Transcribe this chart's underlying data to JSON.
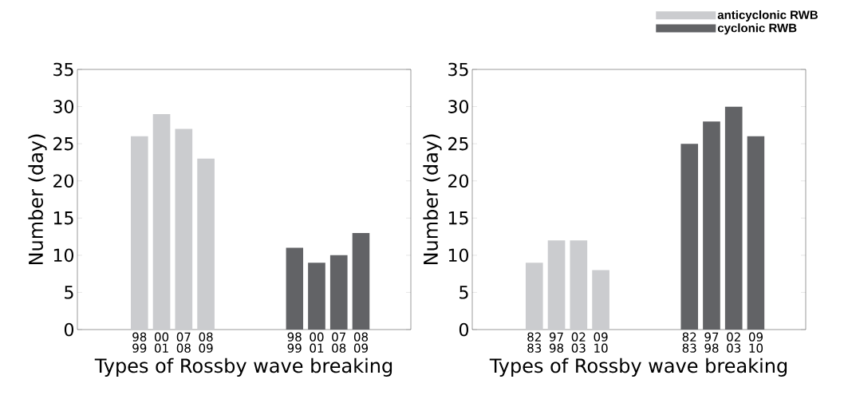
{
  "chart_data": [
    {
      "type": "bar",
      "xlabel": "Types of Rossby wave breaking",
      "ylabel": "Number (day)",
      "categories": [
        "98 99",
        "00 01",
        "07 08",
        "08 09",
        null,
        null,
        null,
        "98 99",
        "00 01",
        "07 08",
        "08 09"
      ],
      "series": [
        {
          "color": "#cbcccf",
          "values": [
            26,
            29,
            27,
            23,
            null,
            null,
            null,
            null,
            null,
            null,
            null
          ]
        },
        {
          "color": "#626366",
          "values": [
            null,
            null,
            null,
            null,
            null,
            null,
            null,
            11,
            9,
            10,
            13
          ]
        }
      ],
      "ylim": [
        0,
        35
      ],
      "yticks": [
        0,
        5,
        10,
        15,
        20,
        25,
        30,
        35
      ],
      "grid": false,
      "legend": false
    },
    {
      "type": "bar",
      "xlabel": "Types of Rossby wave breaking",
      "ylabel": "Number (day)",
      "categories": [
        "82 83",
        "97 98",
        "02 03",
        "09 10",
        null,
        null,
        null,
        "82 83",
        "97 98",
        "02 03",
        "09 10"
      ],
      "series": [
        {
          "name": "anticyclonic RWB",
          "color": "#cbcccf",
          "values": [
            9,
            12,
            12,
            8,
            null,
            null,
            null,
            null,
            null,
            null,
            null
          ]
        },
        {
          "name": "cyclonic RWB",
          "color": "#626366",
          "values": [
            null,
            null,
            null,
            null,
            null,
            null,
            null,
            25,
            28,
            30,
            26
          ]
        }
      ],
      "ylim": [
        0,
        35
      ],
      "yticks": [
        0,
        5,
        10,
        15,
        20,
        25,
        30,
        35
      ],
      "grid": false,
      "legend": "top right"
    }
  ]
}
